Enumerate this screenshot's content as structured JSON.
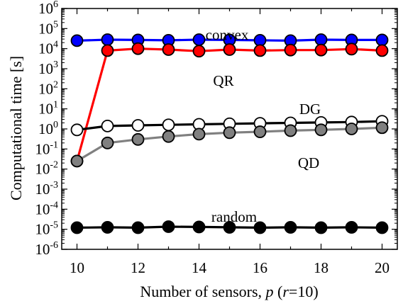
{
  "chart_data": {
    "type": "line",
    "xlabel": {
      "prefix": "Number of sensors, ",
      "p": "p",
      "middle": " (",
      "r": "r",
      "suffix": "=10)"
    },
    "ylabel": "Computational time [s]",
    "xlim": [
      9.5,
      20.5
    ],
    "ylim_log10": [
      -6,
      6
    ],
    "y_scale": "log",
    "x_ticks": [
      10,
      12,
      14,
      16,
      18,
      20
    ],
    "y_tick_base": "10",
    "y_tick_exponents": [
      "-6",
      "-5",
      "-4",
      "-3",
      "-2",
      "-1",
      "0",
      "1",
      "2",
      "3",
      "4",
      "5",
      "6"
    ],
    "x": [
      10,
      11,
      12,
      13,
      14,
      15,
      16,
      17,
      18,
      19,
      20
    ],
    "grid": false,
    "legend": "inline labels",
    "series": [
      {
        "name": "convex",
        "color": "#0000ff",
        "marker": "filled",
        "values": [
          25000,
          28000,
          27000,
          26000,
          28000,
          27000,
          26000,
          25000,
          28000,
          27000,
          27000
        ]
      },
      {
        "name": "QR",
        "color": "#ff0000",
        "marker": "filled",
        "values": [
          0.025,
          8000,
          10000,
          9000,
          7500,
          9000,
          8000,
          8500,
          8500,
          9500,
          8000
        ]
      },
      {
        "name": "DG",
        "color": "#000000",
        "marker": "open",
        "values": [
          0.9,
          1.4,
          1.5,
          1.6,
          1.7,
          1.8,
          1.9,
          2.0,
          2.1,
          2.2,
          2.4
        ]
      },
      {
        "name": "QD",
        "color": "#808080",
        "marker": "filled",
        "values": [
          0.025,
          0.2,
          0.3,
          0.42,
          0.55,
          0.65,
          0.72,
          0.82,
          0.9,
          1.0,
          1.15
        ]
      },
      {
        "name": "random",
        "color": "#000000",
        "marker": "filled",
        "values": [
          1.2e-05,
          1.25e-05,
          1.2e-05,
          1.35e-05,
          1.3e-05,
          1.25e-05,
          1.2e-05,
          1.25e-05,
          1.2e-05,
          1.25e-05,
          1.2e-05
        ]
      }
    ]
  }
}
